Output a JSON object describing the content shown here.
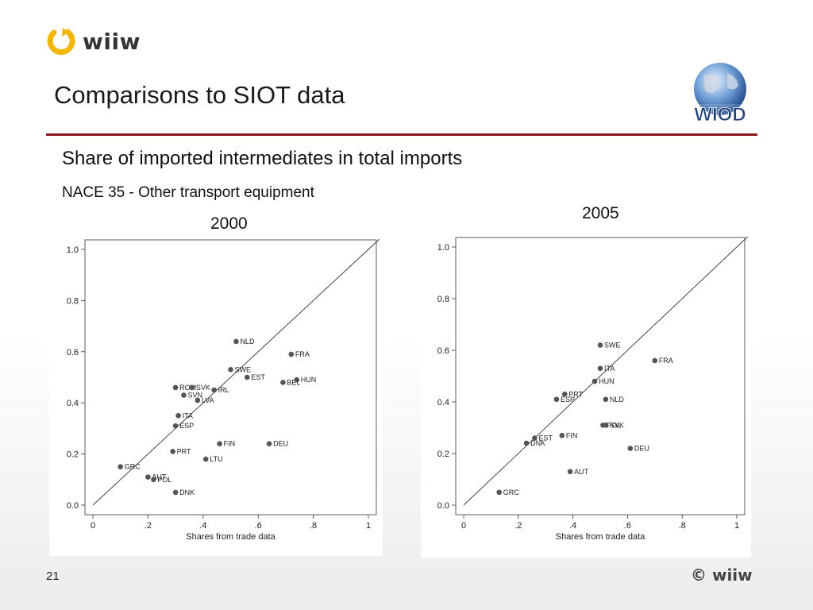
{
  "header": {
    "logo_text": "wiiw",
    "title": "Comparisons to SIOT data",
    "badge_text": "WIOD"
  },
  "subtitle": "Share of imported intermediates in total imports",
  "nace": "NACE 35 - Other transport equipment",
  "footer": {
    "page_number": "21",
    "copyright": "© wiiw"
  },
  "colors": {
    "rule": "#8b1a1a",
    "marker": "#555555",
    "logo_ring": "#f2b705"
  },
  "chart_data": [
    {
      "type": "scatter",
      "title": "2000",
      "xlabel": "Shares from trade data",
      "ylabel": "",
      "xlim": [
        0,
        1
      ],
      "ylim": [
        0,
        1
      ],
      "x_ticks": [
        "0",
        ".2",
        ".4",
        ".6",
        ".8",
        "1"
      ],
      "y_ticks": [
        "0.0",
        "0.2",
        "0.4",
        "0.6",
        "0.8",
        "1.0"
      ],
      "reference_line": "45-degree",
      "points": [
        {
          "label": "NLD",
          "x": 0.52,
          "y": 0.64
        },
        {
          "label": "FRA",
          "x": 0.72,
          "y": 0.59
        },
        {
          "label": "SWE",
          "x": 0.5,
          "y": 0.53
        },
        {
          "label": "EST",
          "x": 0.56,
          "y": 0.5
        },
        {
          "label": "HUN",
          "x": 0.74,
          "y": 0.49
        },
        {
          "label": "BEL",
          "x": 0.69,
          "y": 0.48
        },
        {
          "label": "ROM",
          "x": 0.3,
          "y": 0.46
        },
        {
          "label": "SVK",
          "x": 0.36,
          "y": 0.46
        },
        {
          "label": "IRL",
          "x": 0.44,
          "y": 0.45
        },
        {
          "label": "SVN",
          "x": 0.33,
          "y": 0.43
        },
        {
          "label": "LVA",
          "x": 0.38,
          "y": 0.41
        },
        {
          "label": "ITA",
          "x": 0.31,
          "y": 0.35
        },
        {
          "label": "ESP",
          "x": 0.3,
          "y": 0.31
        },
        {
          "label": "FIN",
          "x": 0.46,
          "y": 0.24
        },
        {
          "label": "DEU",
          "x": 0.64,
          "y": 0.24
        },
        {
          "label": "PRT",
          "x": 0.29,
          "y": 0.21
        },
        {
          "label": "LTU",
          "x": 0.41,
          "y": 0.18
        },
        {
          "label": "GRC",
          "x": 0.1,
          "y": 0.15
        },
        {
          "label": "AUT",
          "x": 0.2,
          "y": 0.11
        },
        {
          "label": "POL",
          "x": 0.22,
          "y": 0.1
        },
        {
          "label": "DNK",
          "x": 0.3,
          "y": 0.05
        }
      ]
    },
    {
      "type": "scatter",
      "title": "2005",
      "xlabel": "Shares from trade data",
      "ylabel": "",
      "xlim": [
        0,
        1
      ],
      "ylim": [
        0,
        1
      ],
      "x_ticks": [
        "0",
        ".2",
        ".4",
        ".6",
        ".8",
        "1"
      ],
      "y_ticks": [
        "0.0",
        "0.2",
        "0.4",
        "0.6",
        "0.8",
        "1.0"
      ],
      "reference_line": "45-degree",
      "points": [
        {
          "label": "SWE",
          "x": 0.5,
          "y": 0.62
        },
        {
          "label": "FRA",
          "x": 0.7,
          "y": 0.56
        },
        {
          "label": "ITA",
          "x": 0.5,
          "y": 0.53
        },
        {
          "label": "HUN",
          "x": 0.48,
          "y": 0.48
        },
        {
          "label": "PRT",
          "x": 0.37,
          "y": 0.43
        },
        {
          "label": "ESP",
          "x": 0.34,
          "y": 0.41
        },
        {
          "label": "NLD",
          "x": 0.52,
          "y": 0.41
        },
        {
          "label": "POL",
          "x": 0.51,
          "y": 0.31
        },
        {
          "label": "SVK",
          "x": 0.52,
          "y": 0.31
        },
        {
          "label": "FIN",
          "x": 0.36,
          "y": 0.27
        },
        {
          "label": "EST",
          "x": 0.26,
          "y": 0.26
        },
        {
          "label": "DNK",
          "x": 0.23,
          "y": 0.24
        },
        {
          "label": "DEU",
          "x": 0.61,
          "y": 0.22
        },
        {
          "label": "AUT",
          "x": 0.39,
          "y": 0.13
        },
        {
          "label": "GRC",
          "x": 0.13,
          "y": 0.05
        }
      ]
    }
  ]
}
